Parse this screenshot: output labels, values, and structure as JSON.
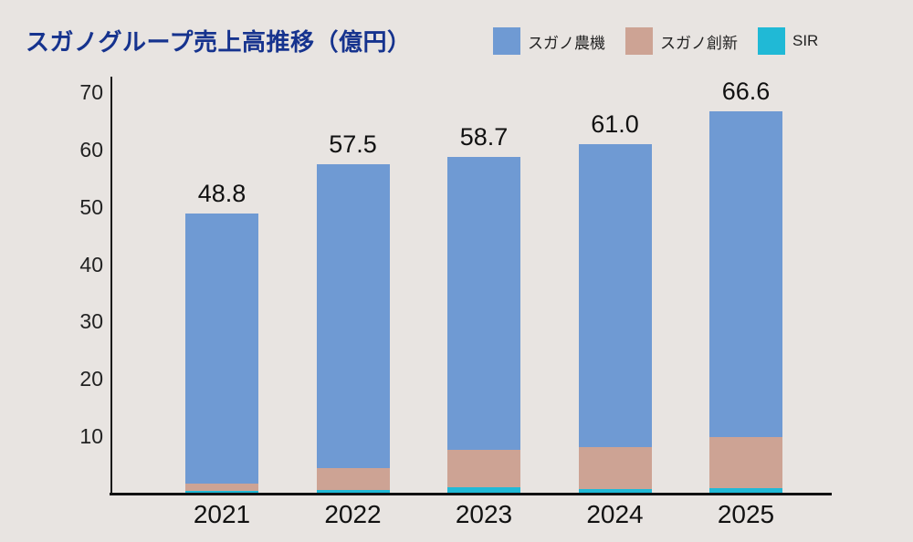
{
  "title": "スガノグループ売上高推移（億円）",
  "colors": {
    "background": "#e8e4e1",
    "title": "#16338e",
    "axis": "#1a1a1a",
    "sugano_noki": "#6f9ad3",
    "sugano_soshin": "#cda394",
    "sir": "#20b9d6"
  },
  "legend": [
    {
      "label": "スガノ農機",
      "color": "#6f9ad3"
    },
    {
      "label": "スガノ創新",
      "color": "#cda394"
    },
    {
      "label": "SIR",
      "color": "#20b9d6"
    }
  ],
  "chart_data": {
    "type": "bar",
    "stacked": true,
    "stack_order": "bottom-to-top",
    "title": "スガノグループ売上高推移（億円）",
    "categories": [
      "2021",
      "2022",
      "2023",
      "2024",
      "2025"
    ],
    "series": [
      {
        "name": "SIR",
        "color_key": "sir",
        "values": [
          0.5,
          0.6,
          1.1,
          0.8,
          1.0
        ]
      },
      {
        "name": "スガノ創新",
        "color_key": "sugano_soshin",
        "values": [
          1.3,
          3.9,
          6.5,
          7.3,
          8.8
        ]
      },
      {
        "name": "スガノ農機",
        "color_key": "sugano_noki",
        "values": [
          47.0,
          53.0,
          51.1,
          52.9,
          56.8
        ]
      }
    ],
    "totals": [
      48.8,
      57.5,
      58.7,
      61.0,
      66.6
    ],
    "total_labels": [
      "48.8",
      "57.5",
      "58.7",
      "61.0",
      "66.6"
    ],
    "xlabel": "",
    "ylabel": "",
    "ylim": [
      0,
      70
    ],
    "yticks": [
      10,
      20,
      30,
      40,
      50,
      60,
      70
    ],
    "grid": false,
    "legend_position": "top-right"
  }
}
